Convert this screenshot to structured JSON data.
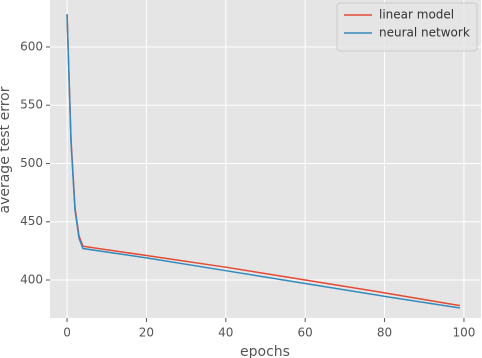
{
  "chart_data": {
    "type": "line",
    "x_label": "epochs",
    "y_label": "average test error",
    "x": [
      0,
      1,
      2,
      3,
      4,
      20,
      40,
      60,
      80,
      99
    ],
    "series": [
      {
        "name": "linear model",
        "color": "#E24A33",
        "values": [
          628,
          520,
          462,
          438,
          429,
          421,
          411,
          400,
          389,
          378
        ]
      },
      {
        "name": "neural network",
        "color": "#348ABD",
        "values": [
          628,
          518,
          460,
          436,
          427,
          419,
          408,
          397,
          386,
          376
        ]
      }
    ],
    "xlim": [
      -4.3,
      104.3
    ],
    "ylim": [
      367.4,
      640.3
    ],
    "xticks": [
      0,
      20,
      40,
      60,
      80,
      100
    ],
    "yticks": [
      400,
      450,
      500,
      550,
      600
    ],
    "grid": true,
    "legend": "upper right"
  }
}
